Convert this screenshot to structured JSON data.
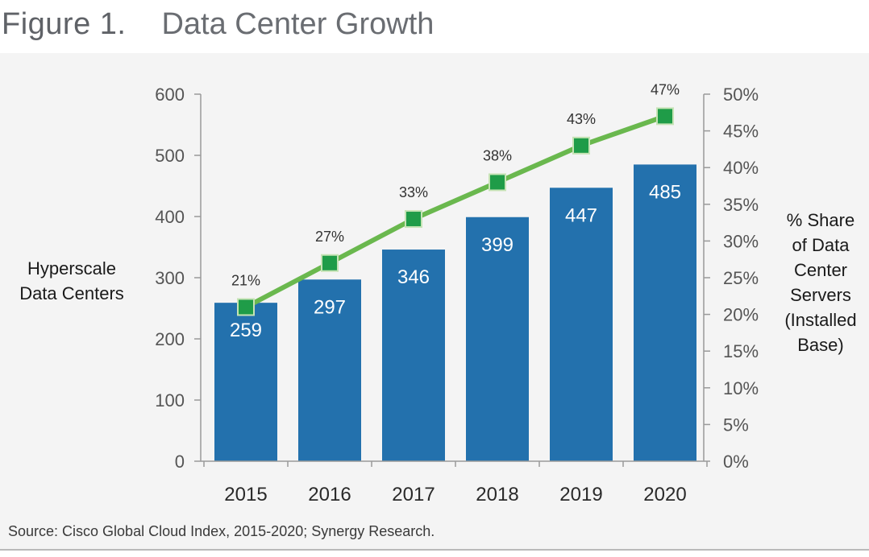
{
  "figure": {
    "number": "Figure 1.",
    "title": "Data Center Growth"
  },
  "source": "Source: Cisco Global Cloud Index, 2015-2020; Synergy Research.",
  "colors": {
    "bar": "#2371ad",
    "line": "#6ab84e",
    "marker": "#1f9c48",
    "marker_border": "#c6e3b5"
  },
  "chart_data": {
    "type": "bar",
    "title": "Data Center Growth",
    "categories": [
      "2015",
      "2016",
      "2017",
      "2018",
      "2019",
      "2020"
    ],
    "series": [
      {
        "name": "Hyperscale Data Centers",
        "type": "bar",
        "axis": "left",
        "values": [
          259,
          297,
          346,
          399,
          447,
          485
        ],
        "labels": [
          "259",
          "297",
          "346",
          "399",
          "447",
          "485"
        ]
      },
      {
        "name": "% Share of Data Center Servers (Installed Base)",
        "type": "line",
        "axis": "right",
        "values": [
          21,
          27,
          33,
          38,
          43,
          47
        ],
        "labels": [
          "21%",
          "27%",
          "33%",
          "38%",
          "43%",
          "47%"
        ]
      }
    ],
    "y_left": {
      "label_lines": [
        "Hyperscale",
        "Data Centers"
      ],
      "ylim": [
        0,
        600
      ],
      "ticks": [
        0,
        100,
        200,
        300,
        400,
        500,
        600
      ],
      "tick_labels": [
        "0",
        "100",
        "200",
        "300",
        "400",
        "500",
        "600"
      ]
    },
    "y_right": {
      "label_lines": [
        "% Share",
        "of Data",
        "Center",
        "Servers",
        "(Installed",
        "Base)"
      ],
      "ylim": [
        0,
        50
      ],
      "ticks": [
        0,
        5,
        10,
        15,
        20,
        25,
        30,
        35,
        40,
        45,
        50
      ],
      "tick_labels": [
        "0%",
        "5%",
        "10%",
        "15%",
        "20%",
        "25%",
        "30%",
        "35%",
        "40%",
        "45%",
        "50%"
      ]
    },
    "grid": false,
    "legend": "none"
  }
}
